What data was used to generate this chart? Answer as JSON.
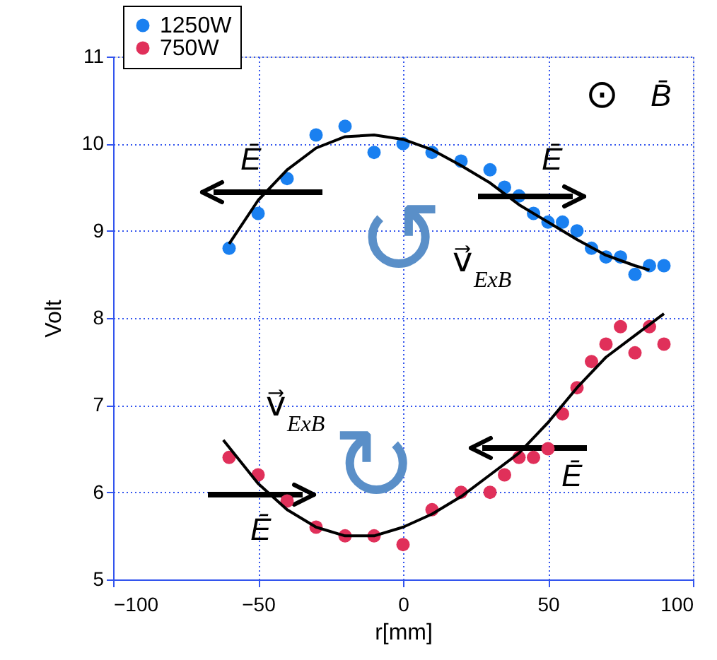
{
  "chart_data": {
    "type": "scatter",
    "xlabel": "r[mm]",
    "ylabel": "Volt",
    "xlim": [
      -100,
      100
    ],
    "xticks": [
      -100,
      -50,
      0,
      50,
      100
    ],
    "ylim": [
      5,
      11
    ],
    "yticks": [
      5,
      6,
      7,
      8,
      9,
      10,
      11
    ],
    "marker": "circle",
    "grid": true,
    "legend": "top left",
    "x": [
      -60,
      -50,
      -40,
      -30,
      -20,
      -10,
      0,
      10,
      20,
      30,
      35,
      40,
      45,
      50,
      55,
      60,
      65,
      70,
      75,
      80,
      85,
      90
    ],
    "series": [
      {
        "name": "1250W",
        "color": "#1a80f0",
        "values": [
          8.8,
          9.2,
          9.6,
          10.1,
          10.2,
          9.9,
          10.0,
          9.9,
          9.8,
          9.7,
          9.5,
          9.4,
          9.2,
          9.1,
          9.1,
          9.0,
          8.8,
          8.7,
          8.7,
          8.5,
          8.6,
          8.6
        ]
      },
      {
        "name": "750W",
        "color": "#e0305a",
        "values": [
          6.4,
          6.2,
          5.9,
          5.6,
          5.5,
          5.5,
          5.4,
          5.8,
          6.0,
          6.0,
          6.2,
          6.4,
          6.4,
          6.5,
          6.9,
          7.2,
          7.5,
          7.7,
          7.9,
          7.6,
          7.9,
          7.7
        ]
      },
      {
        "type": "line",
        "color": "#000000",
        "line_style": "solid",
        "marker": "none",
        "x": [
          -60,
          -50,
          -40,
          -30,
          -20,
          -10,
          0,
          10,
          20,
          30,
          40,
          50,
          60,
          70,
          80,
          85
        ],
        "values": [
          8.85,
          9.35,
          9.7,
          9.95,
          10.08,
          10.1,
          10.05,
          9.93,
          9.75,
          9.55,
          9.3,
          9.1,
          8.9,
          8.72,
          8.6,
          8.55
        ]
      },
      {
        "type": "line",
        "color": "#000000",
        "line_style": "solid",
        "marker": "none",
        "x": [
          -62,
          -50,
          -40,
          -30,
          -20,
          -10,
          0,
          10,
          20,
          30,
          40,
          50,
          60,
          70,
          80,
          90
        ],
        "values": [
          6.6,
          6.1,
          5.8,
          5.6,
          5.5,
          5.5,
          5.6,
          5.75,
          5.95,
          6.2,
          6.45,
          6.8,
          7.2,
          7.55,
          7.8,
          8.05
        ]
      }
    ],
    "annotations": [
      "⊙",
      "B̄",
      "Ē",
      "Ē",
      "Ē",
      "Ē",
      "v⃗$_{ExB}$",
      "v⃗$_{ExB}$",
      "↺",
      "↻"
    ]
  }
}
